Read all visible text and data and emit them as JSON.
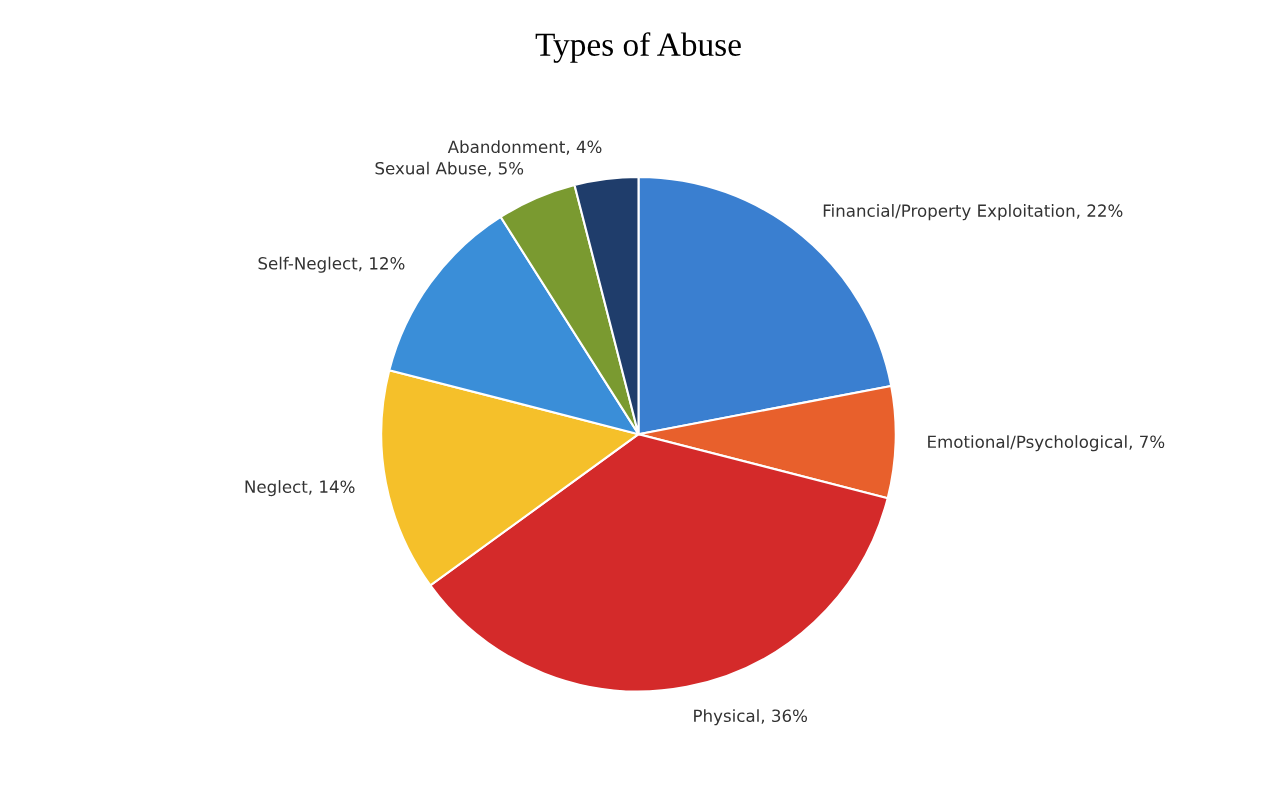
{
  "chart_data": {
    "type": "pie",
    "title": "Types of Abuse",
    "categories": [
      "Financial/Property Exploitation",
      "Emotional/Psychological",
      "Physical",
      "Neglect",
      "Self-Neglect",
      "Sexual Abuse",
      "Abandonment"
    ],
    "values": [
      22,
      7,
      36,
      14,
      12,
      5,
      4
    ],
    "value_labels": [
      "22%",
      "7%",
      "36%",
      "14%",
      "12%",
      "5%",
      "4%"
    ],
    "colors": [
      "#3a7fd0",
      "#e8602c",
      "#d42a2a",
      "#f5c02a",
      "#3a8ed8",
      "#7a9a30",
      "#1f3d6b"
    ]
  }
}
